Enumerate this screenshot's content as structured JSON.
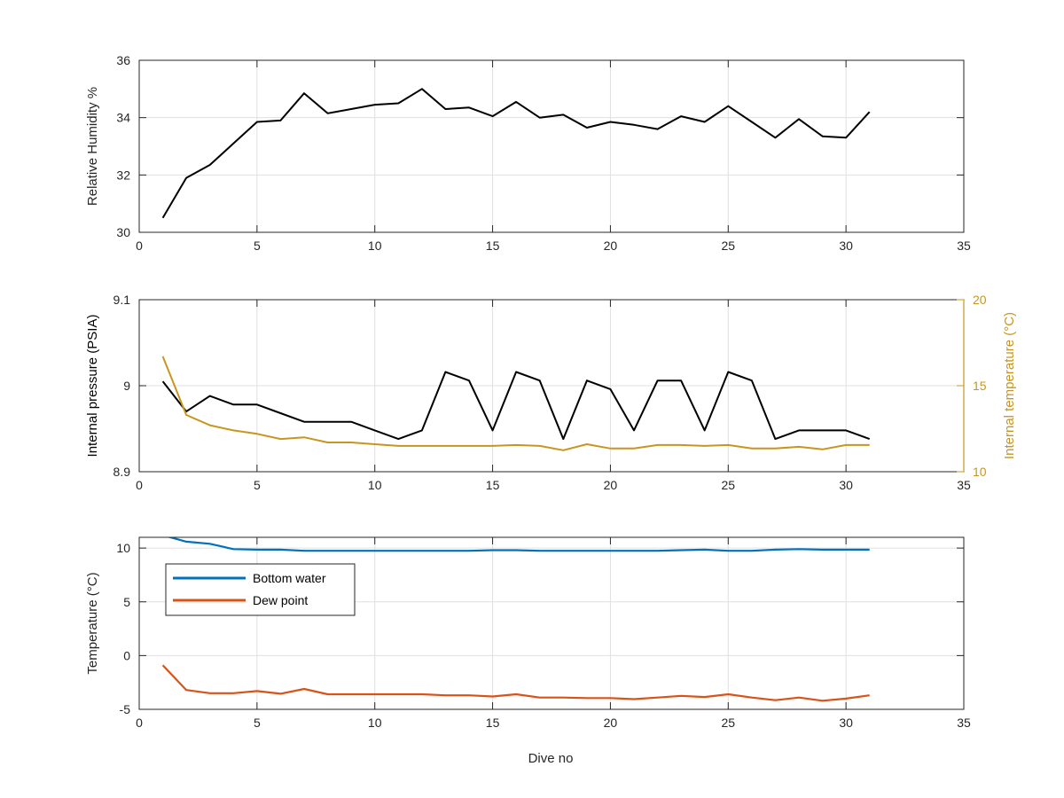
{
  "figure": {
    "shared_xlabel": "Dive no"
  },
  "chart_data": [
    {
      "type": "line",
      "xlabel": "",
      "ylabel": "Relative Humidity %",
      "xlim": [
        0,
        35
      ],
      "ylim": [
        30,
        36
      ],
      "xticks": [
        "0",
        "5",
        "10",
        "15",
        "20",
        "25",
        "30",
        "35"
      ],
      "yticks": [
        "30",
        "32",
        "34",
        "36"
      ],
      "grid": true,
      "series": [
        {
          "color": "#000000",
          "x": [
            1,
            2,
            3,
            4,
            5,
            6,
            7,
            8,
            9,
            10,
            11,
            12,
            13,
            14,
            15,
            16,
            17,
            18,
            19,
            20,
            21,
            22,
            23,
            24,
            25,
            26,
            27,
            28,
            29,
            30,
            31
          ],
          "values": [
            30.5,
            31.9,
            32.35,
            33.1,
            33.85,
            33.9,
            34.85,
            34.15,
            34.3,
            34.45,
            34.5,
            35.0,
            34.3,
            34.35,
            34.05,
            34.55,
            34.0,
            34.1,
            33.65,
            33.85,
            33.75,
            33.6,
            34.05,
            33.85,
            34.4,
            33.85,
            33.3,
            33.95,
            33.35,
            33.3,
            34.2
          ]
        }
      ]
    },
    {
      "type": "line",
      "xlabel": "",
      "ylabel": "Internal pressure (PSIA)",
      "ylabel_right": "Internal temperature (°C)",
      "xlim": [
        0,
        35
      ],
      "ylim": [
        8.9,
        9.1
      ],
      "ylim_right": [
        10,
        20
      ],
      "xticks": [
        "0",
        "5",
        "10",
        "15",
        "20",
        "25",
        "30",
        "35"
      ],
      "yticks": [
        "8.9",
        "9",
        "9.1"
      ],
      "yticks_right": [
        "10",
        "15",
        "20"
      ],
      "grid": true,
      "series": [
        {
          "axis": "left",
          "color": "#000000",
          "x": [
            1,
            2,
            3,
            4,
            5,
            6,
            7,
            8,
            9,
            10,
            11,
            12,
            13,
            14,
            15,
            16,
            17,
            18,
            19,
            20,
            21,
            22,
            23,
            24,
            25,
            26,
            27,
            28,
            29,
            30,
            31
          ],
          "values": [
            9.005,
            8.97,
            8.988,
            8.978,
            8.978,
            8.968,
            8.958,
            8.958,
            8.958,
            8.948,
            8.938,
            8.948,
            9.016,
            9.006,
            8.948,
            9.016,
            9.006,
            8.938,
            9.006,
            8.996,
            8.948,
            9.006,
            9.006,
            8.948,
            9.016,
            9.006,
            8.938,
            8.948,
            8.948,
            8.948,
            8.938
          ]
        },
        {
          "axis": "right",
          "color": "#c8961e",
          "x": [
            1,
            2,
            3,
            4,
            5,
            6,
            7,
            8,
            9,
            10,
            11,
            12,
            13,
            14,
            15,
            16,
            17,
            18,
            19,
            20,
            21,
            22,
            23,
            24,
            25,
            26,
            27,
            28,
            29,
            30,
            31
          ],
          "values": [
            16.7,
            13.3,
            12.7,
            12.4,
            12.2,
            11.9,
            12.0,
            11.7,
            11.7,
            11.6,
            11.5,
            11.5,
            11.5,
            11.5,
            11.5,
            11.55,
            11.5,
            11.25,
            11.6,
            11.35,
            11.35,
            11.55,
            11.55,
            11.5,
            11.55,
            11.35,
            11.35,
            11.45,
            11.3,
            11.55,
            11.55
          ]
        }
      ]
    },
    {
      "type": "line",
      "xlabel": "Dive no",
      "ylabel": "Temperature (°C)",
      "xlim": [
        0,
        35
      ],
      "ylim": [
        -5,
        11
      ],
      "xticks": [
        "0",
        "5",
        "10",
        "15",
        "20",
        "25",
        "30",
        "35"
      ],
      "yticks": [
        "-5",
        "0",
        "5",
        "10"
      ],
      "grid": true,
      "legend": "top-left",
      "series": [
        {
          "name": "Bottom water",
          "color": "#0072bd",
          "x": [
            1,
            2,
            3,
            4,
            5,
            6,
            7,
            8,
            9,
            10,
            11,
            12,
            13,
            14,
            15,
            16,
            17,
            18,
            19,
            20,
            21,
            22,
            23,
            24,
            25,
            26,
            27,
            28,
            29,
            30,
            31
          ],
          "values": [
            11.2,
            10.6,
            10.4,
            9.9,
            9.85,
            9.85,
            9.75,
            9.75,
            9.75,
            9.75,
            9.75,
            9.75,
            9.75,
            9.75,
            9.8,
            9.8,
            9.75,
            9.75,
            9.75,
            9.75,
            9.75,
            9.75,
            9.8,
            9.85,
            9.75,
            9.75,
            9.85,
            9.9,
            9.85,
            9.85,
            9.85
          ]
        },
        {
          "name": "Dew point",
          "color": "#d95319",
          "x": [
            1,
            2,
            3,
            4,
            5,
            6,
            7,
            8,
            9,
            10,
            11,
            12,
            13,
            14,
            15,
            16,
            17,
            18,
            19,
            20,
            21,
            22,
            23,
            24,
            25,
            26,
            27,
            28,
            29,
            30,
            31
          ],
          "values": [
            -0.9,
            -3.2,
            -3.5,
            -3.5,
            -3.3,
            -3.55,
            -3.1,
            -3.6,
            -3.6,
            -3.6,
            -3.6,
            -3.6,
            -3.7,
            -3.7,
            -3.8,
            -3.6,
            -3.9,
            -3.9,
            -3.95,
            -3.95,
            -4.05,
            -3.9,
            -3.75,
            -3.85,
            -3.6,
            -3.9,
            -4.15,
            -3.9,
            -4.2,
            -4.0,
            -3.7
          ]
        }
      ]
    }
  ]
}
